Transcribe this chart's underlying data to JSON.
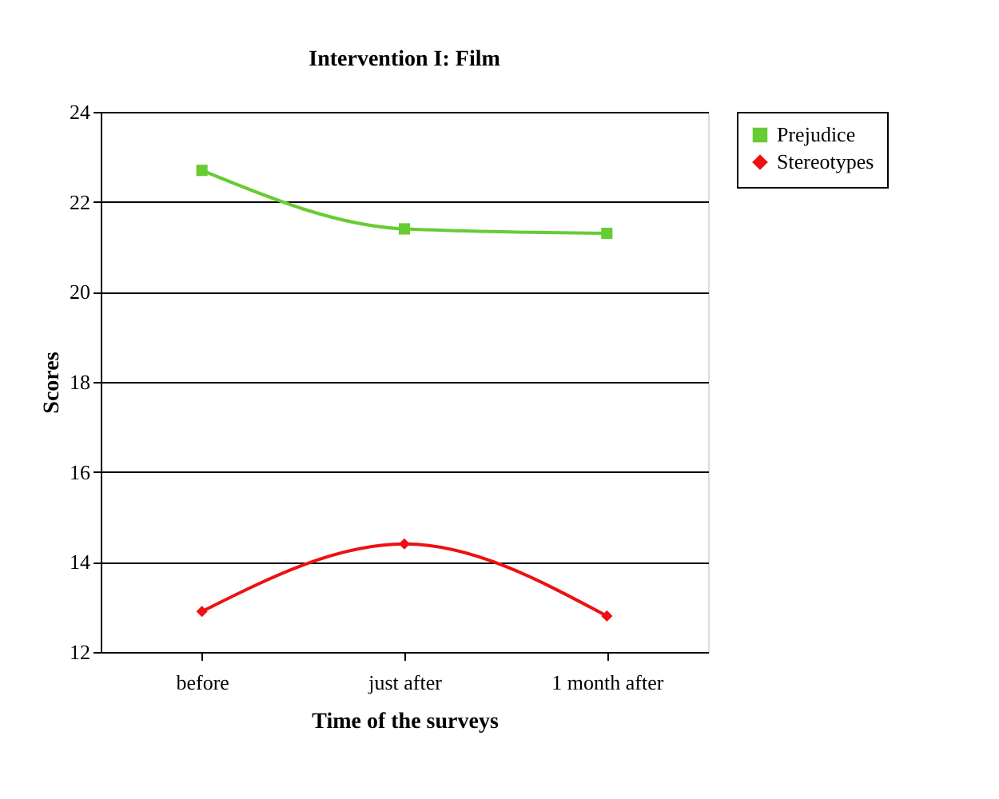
{
  "chart_data": {
    "type": "line",
    "title": "Intervention I: Film",
    "xlabel": "Time of the surveys",
    "ylabel": "Scores",
    "categories": [
      "before",
      "just after",
      "1 month after"
    ],
    "series": [
      {
        "name": "Prejudice",
        "color": "#66cc33",
        "values": [
          22.7,
          21.4,
          21.3
        ],
        "marker": "square"
      },
      {
        "name": "Stereotypes",
        "color": "#ee1111",
        "values": [
          12.9,
          14.4,
          12.8
        ],
        "marker": "diamond"
      }
    ],
    "ylim": [
      12,
      24
    ],
    "yticks": [
      12,
      14,
      16,
      18,
      20,
      22,
      24
    ],
    "grid": "y",
    "legend": "right"
  }
}
